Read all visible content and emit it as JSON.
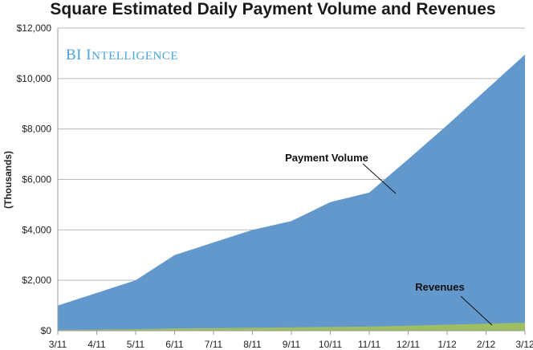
{
  "chart_data": {
    "type": "area",
    "title": "Square Estimated Daily Payment Volume and Revenues",
    "brand": "BI Intelligence",
    "ylabel": "(Thousands)",
    "xlabel": "",
    "categories": [
      "3/11",
      "4/11",
      "5/11",
      "6/11",
      "7/11",
      "8/11",
      "9/11",
      "10/11",
      "11/11",
      "12/11",
      "1/12",
      "2/12",
      "3/12"
    ],
    "ylim": [
      0,
      12000
    ],
    "yticks": [
      0,
      2000,
      4000,
      6000,
      8000,
      10000,
      12000
    ],
    "ytick_labels": [
      "$0",
      "$2,000",
      "$4,000",
      "$6,000",
      "$8,000",
      "$10,000",
      "$12,000"
    ],
    "grid": true,
    "series": [
      {
        "name": "Payment Volume",
        "color": "#6398cc",
        "values": [
          1000,
          1500,
          2000,
          3000,
          3500,
          4000,
          4350,
          5100,
          5480,
          6800,
          8150,
          9550,
          10950
        ]
      },
      {
        "name": "Revenues",
        "color": "#9dbf62",
        "values": [
          30,
          45,
          60,
          90,
          105,
          120,
          130,
          150,
          165,
          200,
          240,
          280,
          320
        ]
      }
    ]
  }
}
